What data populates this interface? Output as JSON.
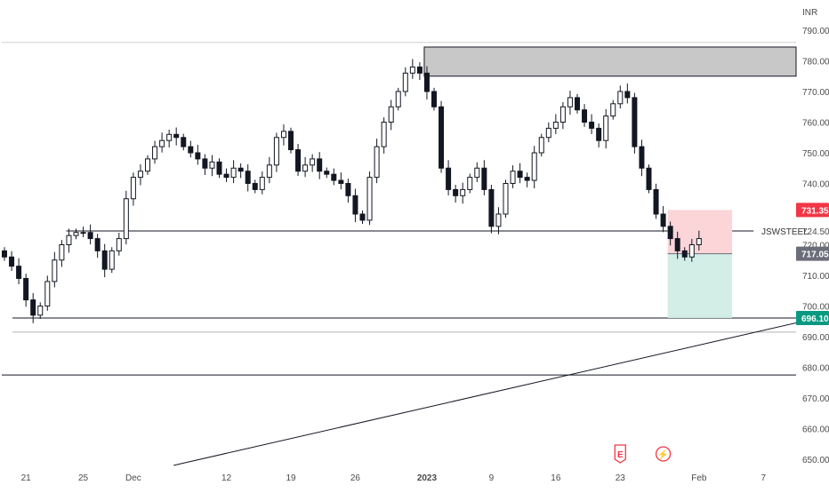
{
  "chart_data": {
    "type": "candlestick",
    "currency": "INR",
    "symbol": "JSWSTEEL",
    "ylim": [
      650,
      795
    ],
    "y_ticks": [
      650,
      660,
      670,
      680,
      690,
      700,
      710,
      720,
      724.5,
      740,
      750,
      760,
      770,
      780,
      790
    ],
    "x_ticks": [
      {
        "label": "21",
        "bar": 3,
        "bold": false
      },
      {
        "label": "25",
        "bar": 11,
        "bold": false
      },
      {
        "label": "Dec",
        "bar": 18,
        "bold": false
      },
      {
        "label": "12",
        "bar": 31,
        "bold": false
      },
      {
        "label": "19",
        "bar": 40,
        "bold": false
      },
      {
        "label": "26",
        "bar": 49,
        "bold": false
      },
      {
        "label": "2023",
        "bar": 59,
        "bold": true
      },
      {
        "label": "9",
        "bar": 68,
        "bold": false
      },
      {
        "label": "16",
        "bar": 77,
        "bold": false
      },
      {
        "label": "23",
        "bar": 86,
        "bold": false
      },
      {
        "label": "Feb",
        "bar": 97,
        "bold": false
      },
      {
        "label": "7",
        "bar": 106,
        "bold": false
      }
    ],
    "closes": [
      716,
      713,
      709,
      702,
      697,
      700,
      708,
      715,
      720,
      723,
      724,
      724,
      722,
      718,
      712,
      718,
      722,
      735,
      742,
      744,
      748,
      752,
      754,
      756,
      755,
      752,
      750,
      748,
      745,
      747,
      743,
      742,
      745,
      744,
      740,
      738,
      742,
      746,
      755,
      757,
      751,
      744,
      746,
      748,
      744,
      743,
      741,
      740,
      736,
      730,
      728,
      742,
      752,
      760,
      765,
      770,
      776,
      778,
      776,
      770,
      765,
      745,
      738,
      736,
      738,
      742,
      745,
      738,
      726,
      730,
      740,
      744,
      742,
      741,
      750,
      755,
      758,
      760,
      765,
      768,
      764,
      760,
      758,
      754,
      762,
      766,
      770,
      768,
      752,
      745,
      738,
      730,
      726,
      722,
      718,
      716,
      720,
      722
    ],
    "levels": {
      "support_line": 724.5,
      "line_696": 696.1,
      "line_693": 691.5,
      "line_677": 677.5,
      "line_ref_790": 786
    },
    "supply_zone": {
      "low": 775,
      "high": 784.5,
      "from_bar": 59
    },
    "position": {
      "from_bar": 93,
      "to_bar": 102,
      "stop": 731.35,
      "entry": 717.05,
      "target": 696.1
    },
    "trendline": {
      "from_bar": 24,
      "from_value": 648,
      "to_value": 694.5
    },
    "badges": [
      {
        "label": "731.35",
        "value": 731.35,
        "color": "#f23645"
      },
      {
        "label": "717.05",
        "value": 717.05,
        "color": "#6b6e7a"
      },
      {
        "label": "696.10",
        "value": 696.1,
        "color": "#089981"
      }
    ],
    "event_markers": [
      {
        "label": "E",
        "bar": 86,
        "color": "#f23645"
      },
      {
        "label": "⚡",
        "bar": 92,
        "color": "#f23645"
      }
    ],
    "colors": {
      "candle": "#131722",
      "zone_fill": "#c8c8c8",
      "stop_fill": "#fbd5d8",
      "target_fill": "#d3ede7",
      "line": "#131722"
    }
  }
}
